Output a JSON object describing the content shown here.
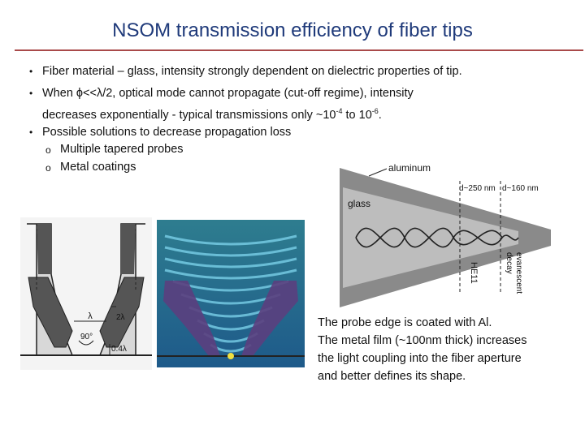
{
  "title": "NSOM transmission efficiency of fiber tips",
  "bullets": {
    "b1": "Fiber material – glass, intensity strongly dependent on dielectric properties of tip.",
    "b2_line1": "When ϕ<<λ/2, optical mode cannot propagate (cut-off regime), intensity",
    "b2_line2_pre": "decreases exponentially - typical transmissions only ~10",
    "b2_sup1": "-4",
    "b2_mid": " to 10",
    "b2_sup2": "-6",
    "b2_end": ".",
    "b3": "Possible solutions to decrease propagation loss",
    "sub1": "Multiple tapered probes",
    "sub2": "Metal coatings"
  },
  "bullet_marker": "•",
  "sub_marker": "o",
  "diagram_left": {
    "lambda": "λ",
    "angle": "90°",
    "two_lambda": "2λ",
    "point4_lambda": "0.4λ"
  },
  "diagram_right": {
    "aluminum": "aluminum",
    "glass": "glass",
    "d250": "d~250 nm",
    "d160": "d~160 nm",
    "he11": "HE11",
    "evanescent": "evanescent",
    "decay": "decay"
  },
  "caption": {
    "line1": "The probe edge is coated with Al.",
    "line2": "The metal film (~100nm thick) increases",
    "line3": "the light coupling into the fiber aperture",
    "line4": "and better defines its shape."
  },
  "colors": {
    "title": "#1f3a7a",
    "rule": "#a94a4a"
  }
}
